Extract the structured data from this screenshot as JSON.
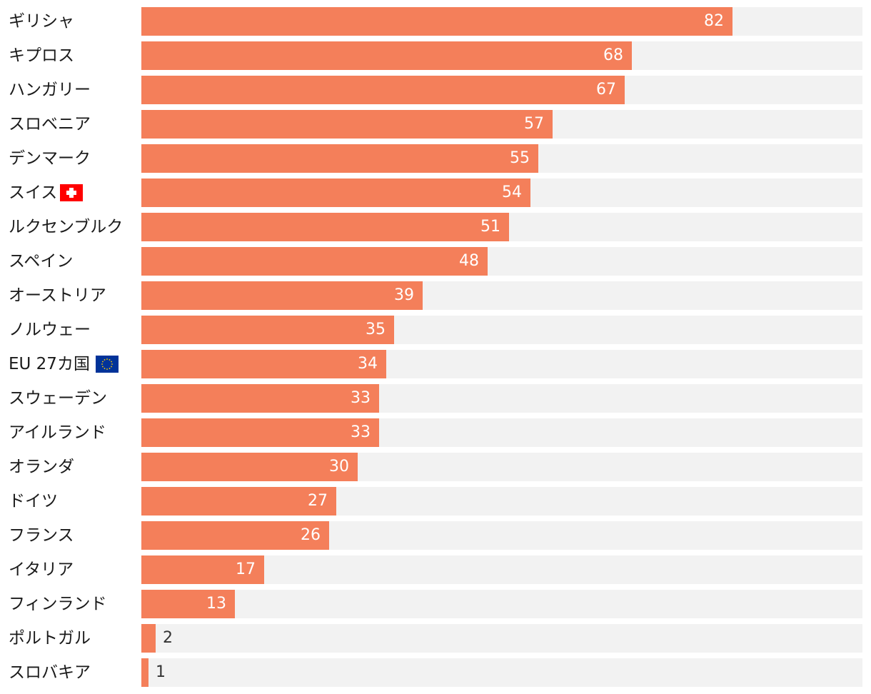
{
  "chart_data": {
    "type": "bar",
    "orientation": "horizontal",
    "title": "",
    "xlabel": "",
    "ylabel": "",
    "xlim": [
      0,
      100
    ],
    "grid": false,
    "colors": {
      "bar": "#f47f5a",
      "track": "#f2f2f2",
      "label_inside": "#ffffff",
      "label_outside": "#333333"
    },
    "categories": [
      "ギリシャ",
      "キプロス",
      "ハンガリー",
      "スロベニア",
      "デンマーク",
      "スイス",
      "ルクセンブルク",
      "スペイン",
      "オーストリア",
      "ノルウェー",
      "EU 27カ国",
      "スウェーデン",
      "アイルランド",
      "オランダ",
      "ドイツ",
      "フランス",
      "イタリア",
      "フィンランド",
      "ポルトガル",
      "スロバキア"
    ],
    "flags": {
      "スイス": "swiss-flag-icon",
      "EU 27カ国": "eu-flag-icon"
    },
    "values": [
      82,
      68,
      67,
      57,
      55,
      54,
      51,
      48,
      39,
      35,
      34,
      33,
      33,
      30,
      27,
      26,
      17,
      13,
      2,
      1
    ]
  }
}
